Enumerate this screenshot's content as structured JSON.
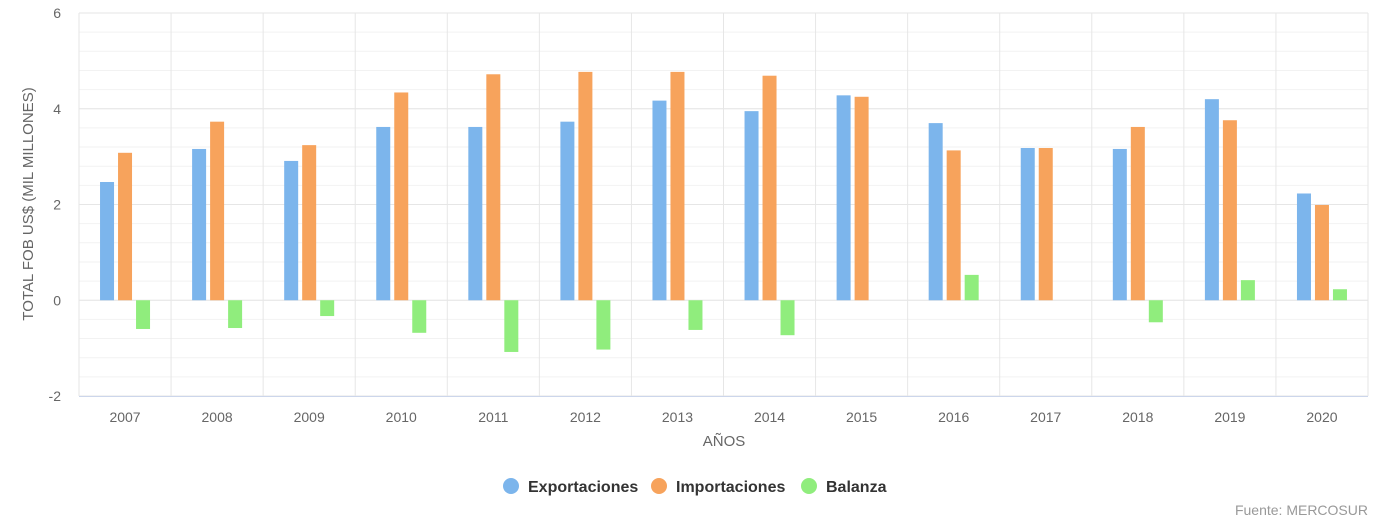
{
  "chart_data": {
    "type": "bar",
    "title": "",
    "xlabel": "AÑOS",
    "ylabel": "TOTAL FOB US$ (MIL MILLONES)",
    "ylim": [
      -2,
      6
    ],
    "yticks": [
      -2,
      0,
      2,
      4,
      6
    ],
    "grid": true,
    "legend_position": "bottom-center",
    "categories": [
      "2007",
      "2008",
      "2009",
      "2010",
      "2011",
      "2012",
      "2013",
      "2014",
      "2015",
      "2016",
      "2017",
      "2018",
      "2019",
      "2020"
    ],
    "series": [
      {
        "name": "Exportaciones",
        "color": "#7cb5ec",
        "values": [
          2.47,
          3.16,
          2.91,
          3.62,
          3.62,
          3.73,
          4.17,
          3.95,
          4.28,
          3.7,
          3.18,
          3.16,
          4.2,
          2.23
        ]
      },
      {
        "name": "Importaciones",
        "color": "#f7a35c",
        "values": [
          3.08,
          3.73,
          3.24,
          4.34,
          4.72,
          4.77,
          4.77,
          4.69,
          4.25,
          3.13,
          3.18,
          3.62,
          3.76,
          1.99
        ]
      },
      {
        "name": "Balanza",
        "color": "#90ed7d",
        "values": [
          -0.6,
          -0.58,
          -0.33,
          -0.68,
          -1.08,
          -1.03,
          -0.62,
          -0.73,
          0.0,
          0.53,
          0.0,
          -0.46,
          0.42,
          0.23
        ]
      }
    ],
    "source": "Fuente: MERCOSUR"
  }
}
